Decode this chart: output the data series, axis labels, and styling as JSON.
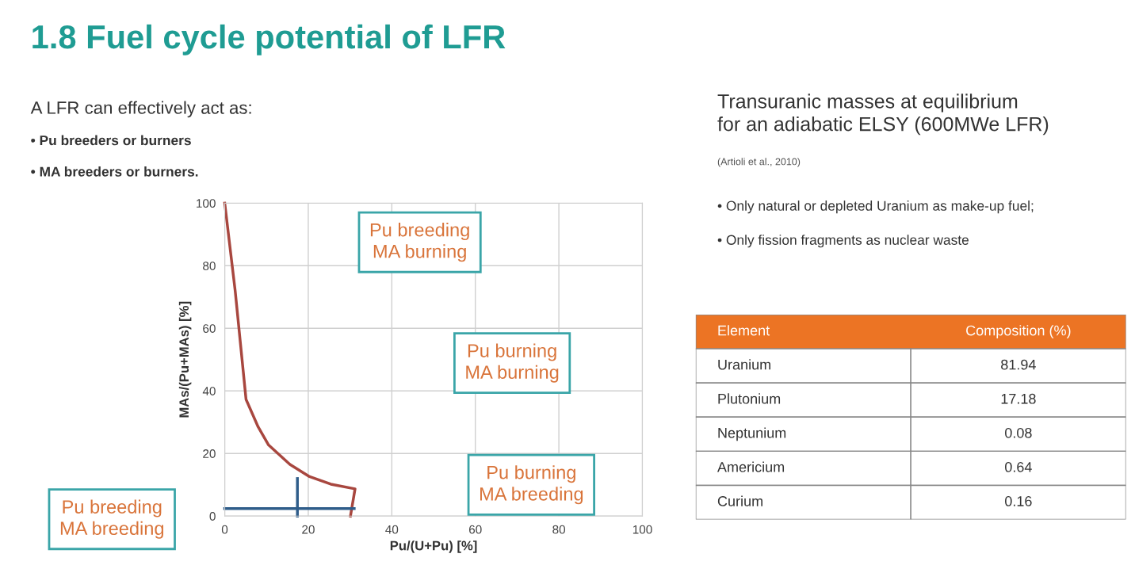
{
  "chart_data": [
    {
      "type": "line",
      "title": "1.8 Fuel cycle potential of LFR",
      "subtitle": "A LFR can effectively act as:\n• Pu breeders or burners\n• MA breeders or burners.",
      "xlabel": "Pu/(U+Pu) [%]",
      "ylabel": "MAs/(Pu+MAs) [%]",
      "xlim": [
        0,
        100
      ],
      "ylim": [
        0,
        100
      ],
      "xticks": [
        0,
        20,
        40,
        60,
        80,
        100
      ],
      "yticks": [
        0,
        20,
        40,
        60,
        80,
        100
      ],
      "grid": true,
      "marker": "none",
      "line_style": "solid",
      "series": [
        {
          "color": "#a8473f",
          "x": [
            0,
            2.5,
            5.1,
            8,
            10.5,
            15.6,
            20.3,
            25.4,
            31.2,
            30.1
          ],
          "values": [
            100,
            72,
            37.3,
            28.5,
            22.7,
            16.5,
            12.6,
            10.2,
            8.7,
            0
          ]
        },
        {
          "color": "#2f5d8a",
          "x": [
            0,
            31
          ],
          "values": [
            2.4,
            2.4
          ]
        },
        {
          "color": "#2f5d8a",
          "x": [
            17.4,
            17.4
          ],
          "values": [
            12,
            0
          ]
        }
      ],
      "annotations": [
        "Pu breeding\nMA burning",
        "Pu burning\nMA burning",
        "Pu burning\nMA breeding",
        "Pu breeding\nMA breeding"
      ]
    },
    {
      "type": "other",
      "title": "Transuranic masses at equilibrium\nfor an adiabatic ELSY (600MWe LFR)",
      "subtitle": "(Artioli et al., 2010)",
      "annotations": [
        "• Only natural or depleted Uranium as make-up fuel;",
        "• Only fission fragments as nuclear waste"
      ],
      "xlabel": "Element",
      "ylabel": "Composition (%)",
      "data_labels": true,
      "categories": [
        "Uranium",
        "Plutonium",
        "Neptunium",
        "Americium",
        "Curium"
      ],
      "values": [
        81.94,
        17.18,
        0.08,
        0.64,
        0.16
      ]
    }
  ]
}
